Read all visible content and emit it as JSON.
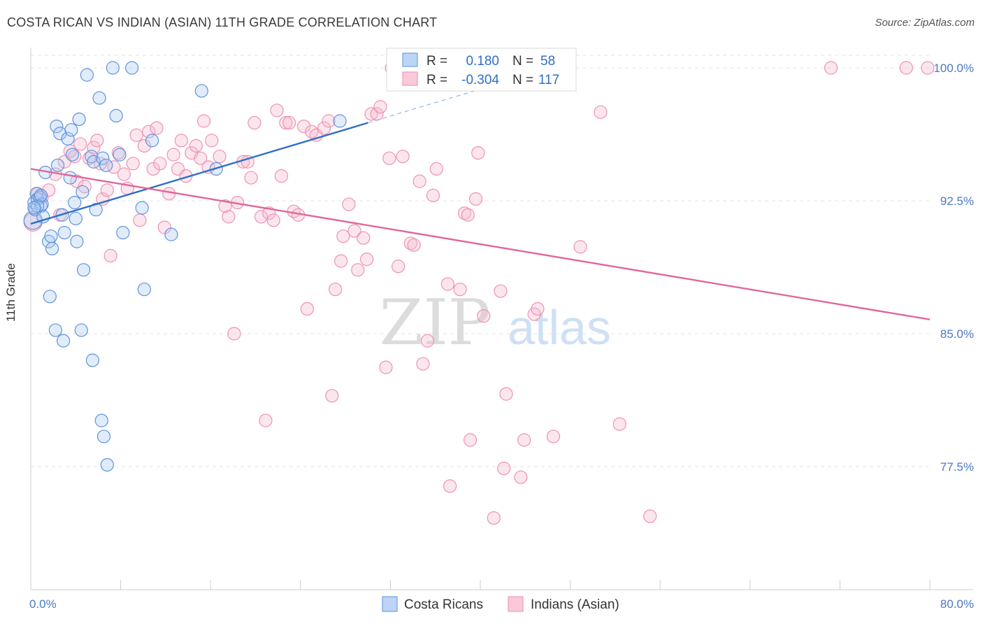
{
  "title": "COSTA RICAN VS INDIAN (ASIAN) 11TH GRADE CORRELATION CHART",
  "source": "Source: ZipAtlas.com",
  "watermark": {
    "zip": "ZIP",
    "atlas": "atlas"
  },
  "colors": {
    "blue": "#6fa1e6",
    "blue_line": "#2f6fc6",
    "pink": "#f29ab8",
    "pink_line": "#e0679a",
    "tick": "#4a78c8"
  },
  "legend": {
    "r_label": "R =",
    "n_label": "N =",
    "series": [
      {
        "name": "Costa Ricans",
        "r": "0.180",
        "n": "58"
      },
      {
        "name": "Indians (Asian)",
        "r": "-0.304",
        "n": "117"
      }
    ]
  },
  "chart_data": {
    "type": "scatter",
    "title": "COSTA RICAN VS INDIAN (ASIAN) 11TH GRADE CORRELATION CHART",
    "xlabel": "",
    "ylabel": "11th Grade",
    "xlim": [
      0,
      80
    ],
    "ylim": [
      71,
      100.6
    ],
    "x_tick_labels": [
      "0.0%",
      "80.0%"
    ],
    "y_ticks": [
      77.5,
      85.0,
      92.5,
      100.0
    ],
    "y_tick_labels": [
      "77.5%",
      "85.0%",
      "92.5%",
      "100.0%"
    ],
    "grid": true,
    "series": [
      {
        "name": "Costa Ricans",
        "r": 0.18,
        "n": 58,
        "trend": {
          "x0": 0,
          "y0": 91.2,
          "x1": 30,
          "y1": 96.9,
          "dash_to_x": 40,
          "dash_to_y": 98.8
        },
        "points": [
          [
            0.2,
            91.4
          ],
          [
            0.3,
            92.4
          ],
          [
            0.4,
            92.0
          ],
          [
            0.5,
            92.9
          ],
          [
            0.6,
            92.6
          ],
          [
            0.8,
            92.7
          ],
          [
            0.9,
            92.2
          ],
          [
            1.0,
            92.3
          ],
          [
            1.1,
            91.6
          ],
          [
            1.3,
            94.1
          ],
          [
            1.6,
            90.2
          ],
          [
            1.8,
            90.5
          ],
          [
            1.9,
            89.8
          ],
          [
            2.3,
            96.7
          ],
          [
            2.4,
            94.5
          ],
          [
            2.6,
            96.3
          ],
          [
            2.8,
            91.7
          ],
          [
            3.0,
            90.7
          ],
          [
            3.3,
            96.0
          ],
          [
            3.5,
            93.8
          ],
          [
            3.6,
            96.5
          ],
          [
            3.7,
            95.1
          ],
          [
            3.9,
            92.4
          ],
          [
            4.0,
            91.5
          ],
          [
            4.1,
            90.2
          ],
          [
            4.3,
            97.1
          ],
          [
            4.6,
            93.0
          ],
          [
            4.7,
            88.6
          ],
          [
            5.0,
            99.6
          ],
          [
            5.4,
            95.0
          ],
          [
            5.6,
            94.7
          ],
          [
            5.8,
            92.0
          ],
          [
            6.1,
            98.3
          ],
          [
            6.4,
            94.9
          ],
          [
            6.7,
            94.5
          ],
          [
            7.3,
            100.0
          ],
          [
            7.6,
            97.3
          ],
          [
            7.9,
            95.1
          ],
          [
            8.2,
            90.7
          ],
          [
            9.0,
            100.0
          ],
          [
            9.9,
            92.1
          ],
          [
            10.1,
            87.5
          ],
          [
            10.8,
            95.9
          ],
          [
            12.5,
            90.6
          ],
          [
            15.2,
            98.7
          ],
          [
            16.5,
            94.3
          ],
          [
            27.5,
            97.0
          ],
          [
            0.6,
            92.2
          ],
          [
            0.9,
            92.8
          ],
          [
            1.7,
            87.1
          ],
          [
            2.2,
            85.2
          ],
          [
            2.9,
            84.6
          ],
          [
            4.5,
            85.2
          ],
          [
            5.5,
            83.5
          ],
          [
            6.3,
            80.1
          ],
          [
            6.5,
            79.2
          ],
          [
            6.8,
            77.6
          ],
          [
            0.3,
            92.1
          ]
        ]
      },
      {
        "name": "Indians (Asian)",
        "r": -0.304,
        "n": 117,
        "trend": {
          "x0": 0,
          "y0": 94.3,
          "x1": 80,
          "y1": 85.8
        },
        "points": [
          [
            0.2,
            91.3
          ],
          [
            0.6,
            92.9
          ],
          [
            1.0,
            92.7
          ],
          [
            1.6,
            93.1
          ],
          [
            2.2,
            94.0
          ],
          [
            2.6,
            91.7
          ],
          [
            3.0,
            94.7
          ],
          [
            3.5,
            95.3
          ],
          [
            3.9,
            95.0
          ],
          [
            4.1,
            93.6
          ],
          [
            4.4,
            95.7
          ],
          [
            4.8,
            93.3
          ],
          [
            5.2,
            94.9
          ],
          [
            5.6,
            95.5
          ],
          [
            5.9,
            95.9
          ],
          [
            6.2,
            94.6
          ],
          [
            6.4,
            92.6
          ],
          [
            6.8,
            93.1
          ],
          [
            7.1,
            89.4
          ],
          [
            7.4,
            94.4
          ],
          [
            7.8,
            95.2
          ],
          [
            8.3,
            94.0
          ],
          [
            8.6,
            93.2
          ],
          [
            9.1,
            94.6
          ],
          [
            9.4,
            96.2
          ],
          [
            9.7,
            91.4
          ],
          [
            10.1,
            95.6
          ],
          [
            10.5,
            96.4
          ],
          [
            10.9,
            94.3
          ],
          [
            11.2,
            96.6
          ],
          [
            11.5,
            94.6
          ],
          [
            11.9,
            91.0
          ],
          [
            12.3,
            92.9
          ],
          [
            12.7,
            95.1
          ],
          [
            13.1,
            94.3
          ],
          [
            13.4,
            95.9
          ],
          [
            13.8,
            93.9
          ],
          [
            14.3,
            95.2
          ],
          [
            14.7,
            95.6
          ],
          [
            15.1,
            94.9
          ],
          [
            15.4,
            97.0
          ],
          [
            15.8,
            94.4
          ],
          [
            16.1,
            95.9
          ],
          [
            16.8,
            95.0
          ],
          [
            17.3,
            92.2
          ],
          [
            17.6,
            91.6
          ],
          [
            18.1,
            85.0
          ],
          [
            18.4,
            92.4
          ],
          [
            18.9,
            94.7
          ],
          [
            19.3,
            94.7
          ],
          [
            19.6,
            93.8
          ],
          [
            19.9,
            96.9
          ],
          [
            20.5,
            91.6
          ],
          [
            20.9,
            80.1
          ],
          [
            21.2,
            91.8
          ],
          [
            21.6,
            91.4
          ],
          [
            21.9,
            97.6
          ],
          [
            22.3,
            93.9
          ],
          [
            22.7,
            96.9
          ],
          [
            23.0,
            96.9
          ],
          [
            23.4,
            91.9
          ],
          [
            23.8,
            91.7
          ],
          [
            24.3,
            96.7
          ],
          [
            24.6,
            86.4
          ],
          [
            25.0,
            96.4
          ],
          [
            25.4,
            96.2
          ],
          [
            26.1,
            96.6
          ],
          [
            26.5,
            97.0
          ],
          [
            26.8,
            81.5
          ],
          [
            27.1,
            87.5
          ],
          [
            27.6,
            89.1
          ],
          [
            27.8,
            90.5
          ],
          [
            28.3,
            92.3
          ],
          [
            28.8,
            90.8
          ],
          [
            29.1,
            88.6
          ],
          [
            29.6,
            90.4
          ],
          [
            29.9,
            89.2
          ],
          [
            30.3,
            97.4
          ],
          [
            30.8,
            97.4
          ],
          [
            31.1,
            97.8
          ],
          [
            31.6,
            83.1
          ],
          [
            31.9,
            94.9
          ],
          [
            32.1,
            100.0
          ],
          [
            32.7,
            88.8
          ],
          [
            33.1,
            95.0
          ],
          [
            33.8,
            90.1
          ],
          [
            34.1,
            90.0
          ],
          [
            34.6,
            93.6
          ],
          [
            34.9,
            83.3
          ],
          [
            35.3,
            84.6
          ],
          [
            35.8,
            92.8
          ],
          [
            36.1,
            94.3
          ],
          [
            37.1,
            87.8
          ],
          [
            37.3,
            76.4
          ],
          [
            38.2,
            87.5
          ],
          [
            38.6,
            91.8
          ],
          [
            38.9,
            91.7
          ],
          [
            39.1,
            79.0
          ],
          [
            39.6,
            92.6
          ],
          [
            39.8,
            95.2
          ],
          [
            40.3,
            86.0
          ],
          [
            41.2,
            74.6
          ],
          [
            41.8,
            87.4
          ],
          [
            42.1,
            77.4
          ],
          [
            42.3,
            81.6
          ],
          [
            43.6,
            76.9
          ],
          [
            43.9,
            79.0
          ],
          [
            44.8,
            86.1
          ],
          [
            45.1,
            86.4
          ],
          [
            46.5,
            79.2
          ],
          [
            48.9,
            89.9
          ],
          [
            50.7,
            97.5
          ],
          [
            52.4,
            79.9
          ],
          [
            55.1,
            74.7
          ],
          [
            71.2,
            100.0
          ],
          [
            77.9,
            100.0
          ],
          [
            79.8,
            100.0
          ]
        ]
      }
    ]
  }
}
